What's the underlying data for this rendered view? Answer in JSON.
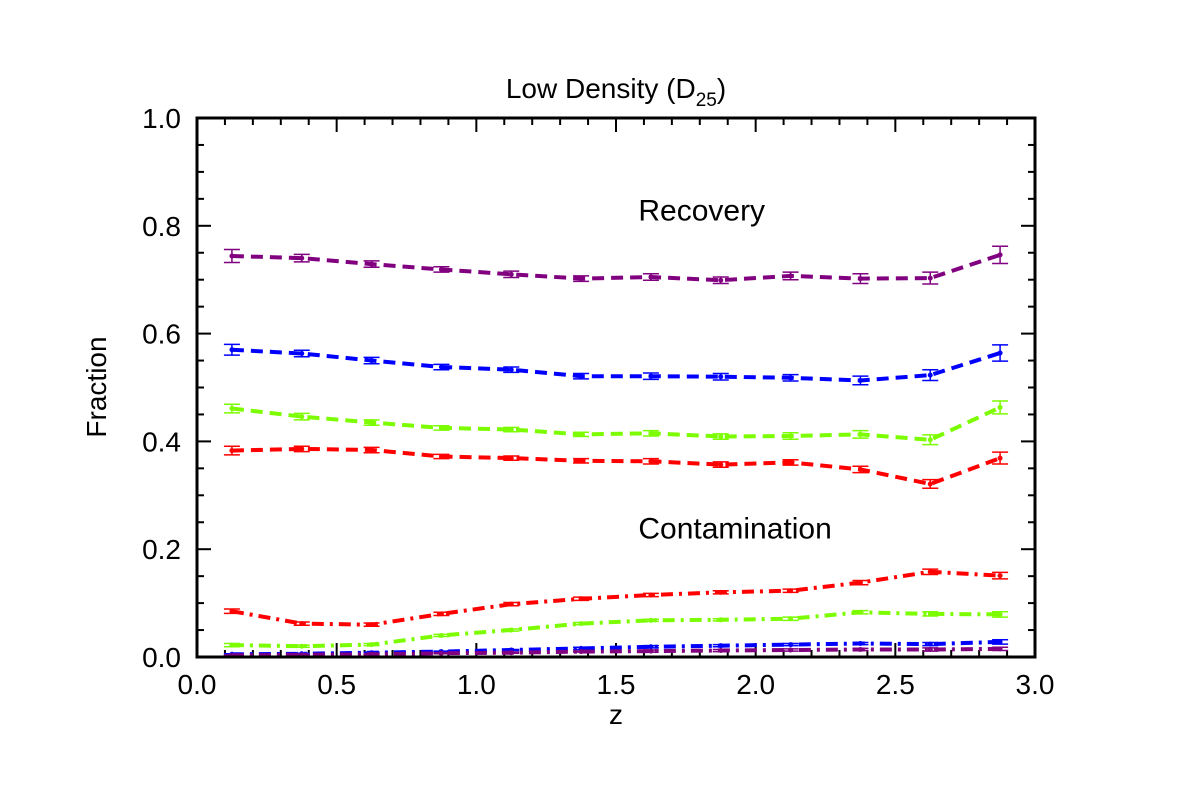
{
  "chart_data": {
    "type": "line",
    "title": "Low Density (D",
    "title_subscript": "25",
    "title_suffix": ")",
    "xlabel": "z",
    "ylabel": "Fraction",
    "xlim": [
      0.0,
      3.0
    ],
    "ylim": [
      0.0,
      1.0
    ],
    "x_ticks": [
      "0.0",
      "0.5",
      "1.0",
      "1.5",
      "2.0",
      "2.5",
      "3.0"
    ],
    "y_ticks": [
      "0.0",
      "0.2",
      "0.4",
      "0.6",
      "0.8",
      "1.0"
    ],
    "grid": false,
    "annotations": [
      {
        "text": "Recovery",
        "x": 1.58,
        "y": 0.81
      },
      {
        "text": "Contamination",
        "x": 1.58,
        "y": 0.22
      }
    ],
    "x": [
      0.125,
      0.375,
      0.625,
      0.875,
      1.125,
      1.375,
      1.625,
      1.875,
      2.125,
      2.375,
      2.625,
      2.875
    ],
    "series": [
      {
        "name": "recovery-purple",
        "group": "recovery",
        "color": "#800080",
        "dash": "dashed",
        "values": [
          0.744,
          0.74,
          0.729,
          0.719,
          0.71,
          0.702,
          0.705,
          0.699,
          0.707,
          0.702,
          0.703,
          0.746
        ],
        "errors": [
          0.012,
          0.007,
          0.006,
          0.005,
          0.006,
          0.005,
          0.006,
          0.006,
          0.007,
          0.009,
          0.011,
          0.016
        ]
      },
      {
        "name": "recovery-blue",
        "group": "recovery",
        "color": "#0000ff",
        "dash": "dashed",
        "values": [
          0.57,
          0.563,
          0.55,
          0.538,
          0.533,
          0.521,
          0.521,
          0.52,
          0.518,
          0.513,
          0.523,
          0.564
        ],
        "errors": [
          0.01,
          0.006,
          0.006,
          0.005,
          0.005,
          0.005,
          0.006,
          0.006,
          0.006,
          0.008,
          0.01,
          0.015
        ]
      },
      {
        "name": "recovery-green",
        "group": "recovery",
        "color": "#7cfc00",
        "dash": "dashed",
        "values": [
          0.461,
          0.446,
          0.435,
          0.425,
          0.422,
          0.413,
          0.415,
          0.409,
          0.41,
          0.413,
          0.403,
          0.463
        ],
        "errors": [
          0.008,
          0.006,
          0.005,
          0.004,
          0.004,
          0.004,
          0.005,
          0.005,
          0.006,
          0.007,
          0.009,
          0.012
        ]
      },
      {
        "name": "recovery-red",
        "group": "recovery",
        "color": "#ff0000",
        "dash": "dashed",
        "values": [
          0.383,
          0.386,
          0.384,
          0.372,
          0.369,
          0.364,
          0.363,
          0.357,
          0.361,
          0.348,
          0.321,
          0.369
        ],
        "errors": [
          0.008,
          0.005,
          0.005,
          0.004,
          0.004,
          0.004,
          0.005,
          0.005,
          0.005,
          0.006,
          0.008,
          0.011
        ]
      },
      {
        "name": "contamination-red",
        "group": "contamination",
        "color": "#ff0000",
        "dash": "dashdot",
        "values": [
          0.085,
          0.062,
          0.06,
          0.08,
          0.098,
          0.108,
          0.115,
          0.12,
          0.123,
          0.138,
          0.158,
          0.151
        ],
        "errors": [
          0.004,
          0.003,
          0.003,
          0.003,
          0.003,
          0.003,
          0.003,
          0.003,
          0.003,
          0.004,
          0.005,
          0.006
        ]
      },
      {
        "name": "contamination-green",
        "group": "contamination",
        "color": "#7cfc00",
        "dash": "dashdot",
        "values": [
          0.022,
          0.02,
          0.023,
          0.04,
          0.05,
          0.062,
          0.068,
          0.069,
          0.071,
          0.083,
          0.08,
          0.079
        ],
        "errors": [
          0.003,
          0.002,
          0.002,
          0.002,
          0.002,
          0.002,
          0.002,
          0.002,
          0.003,
          0.003,
          0.004,
          0.005
        ]
      },
      {
        "name": "contamination-blue",
        "group": "contamination",
        "color": "#0000ff",
        "dash": "dashdot",
        "values": [
          0.005,
          0.006,
          0.008,
          0.01,
          0.013,
          0.016,
          0.019,
          0.021,
          0.023,
          0.025,
          0.024,
          0.028
        ],
        "errors": [
          0.001,
          0.001,
          0.001,
          0.001,
          0.001,
          0.002,
          0.002,
          0.002,
          0.002,
          0.002,
          0.003,
          0.004
        ]
      },
      {
        "name": "contamination-purple",
        "group": "contamination",
        "color": "#800080",
        "dash": "dashdot",
        "values": [
          0.003,
          0.004,
          0.005,
          0.007,
          0.008,
          0.01,
          0.011,
          0.012,
          0.013,
          0.014,
          0.014,
          0.015
        ],
        "errors": [
          0.001,
          0.001,
          0.001,
          0.001,
          0.001,
          0.001,
          0.002,
          0.002,
          0.002,
          0.002,
          0.003,
          0.003
        ]
      }
    ]
  }
}
